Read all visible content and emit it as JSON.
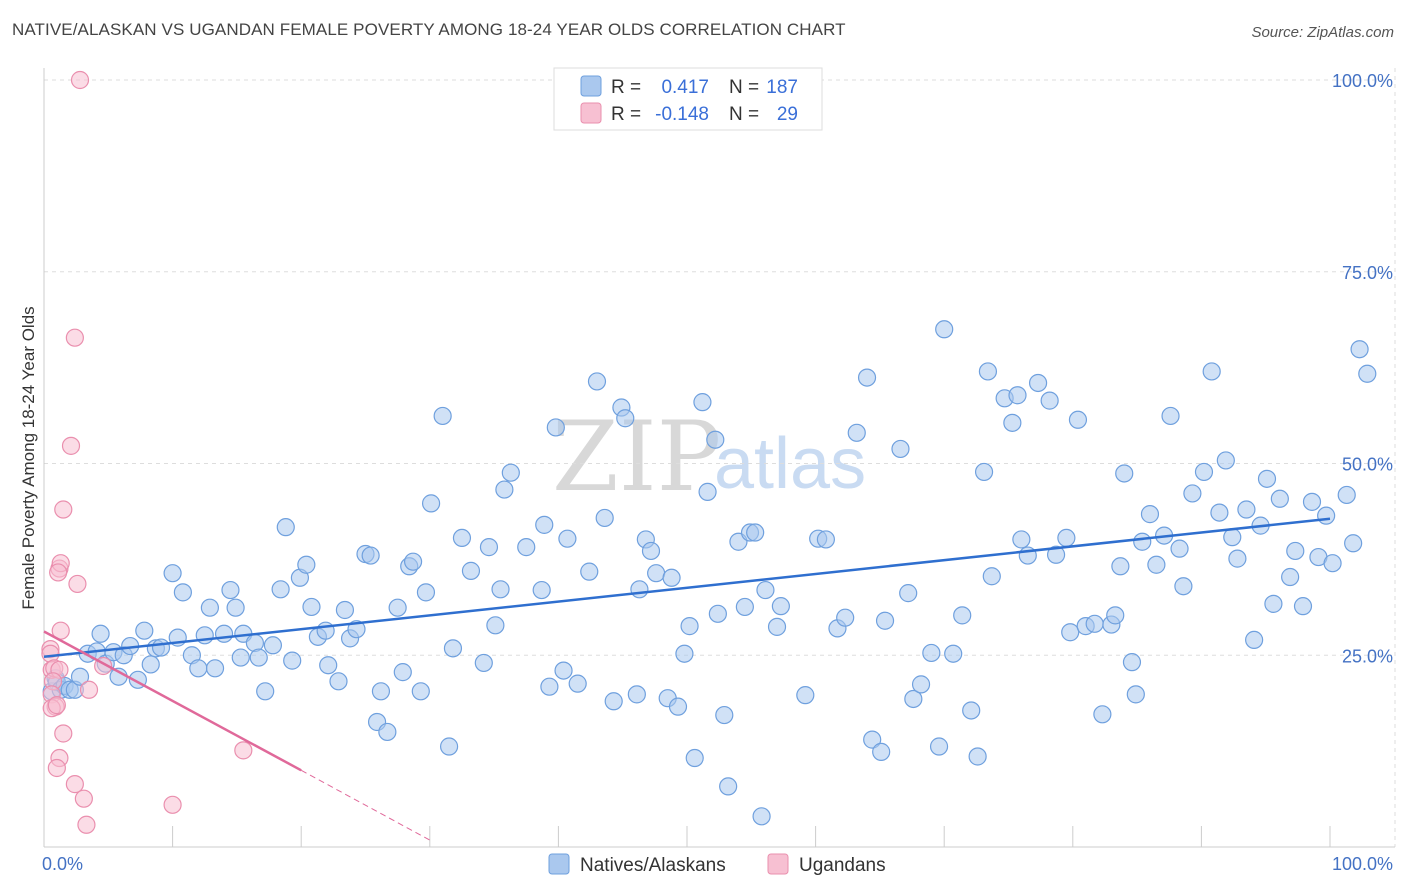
{
  "title": "NATIVE/ALASKAN VS UGANDAN FEMALE POVERTY AMONG 18-24 YEAR OLDS CORRELATION CHART",
  "source": "Source: ZipAtlas.com",
  "watermark": {
    "zip": "ZIP",
    "atlas": "atlas"
  },
  "colors": {
    "blue_fill": "#aac8ee",
    "blue_stroke": "#6fa0de",
    "blue_line": "#2f6fcf",
    "pink_fill": "#f7c0d2",
    "pink_stroke": "#ea8fae",
    "pink_line": "#e0699a",
    "grid": "#dddddd",
    "tick_text": "#4472c4"
  },
  "legend": {
    "rows": [
      {
        "r_label": "R =",
        "r_value": "0.417",
        "n_label": "N =",
        "n_value": "187"
      },
      {
        "r_label": "R =",
        "r_value": "-0.148",
        "n_label": "N =",
        "n_value": "29"
      }
    ]
  },
  "bottom_legend": [
    "Natives/Alaskans",
    "Ugandans"
  ],
  "chart_data": {
    "type": "scatter",
    "title": "NATIVE/ALASKAN VS UGANDAN FEMALE POVERTY AMONG 18-24 YEAR OLDS CORRELATION CHART",
    "xlabel": "",
    "ylabel": "Female Poverty Among 18-24 Year Olds",
    "xlim": [
      0,
      100
    ],
    "ylim": [
      0,
      100
    ],
    "x_tick_labels": [
      "0.0%",
      "100.0%"
    ],
    "y_tick_labels": [
      "25.0%",
      "50.0%",
      "75.0%",
      "100.0%"
    ],
    "y_ticks": [
      25,
      50,
      75,
      100
    ],
    "grid": true,
    "legend_position": "top-center",
    "series": [
      {
        "name": "Natives/Alaskans",
        "r": 0.417,
        "n": 187,
        "trend": {
          "x": [
            0,
            100
          ],
          "y": [
            24.8,
            42.8
          ]
        },
        "points": [
          [
            0.6,
            20.3
          ],
          [
            0.9,
            22.0
          ],
          [
            1.0,
            21.5
          ],
          [
            1.3,
            20.5
          ],
          [
            1.6,
            21.0
          ],
          [
            2.0,
            20.5
          ],
          [
            2.4,
            20.5
          ],
          [
            2.8,
            22.2
          ],
          [
            3.4,
            25.2
          ],
          [
            4.1,
            25.5
          ],
          [
            4.4,
            27.8
          ],
          [
            4.8,
            23.9
          ],
          [
            5.4,
            25.4
          ],
          [
            5.8,
            22.2
          ],
          [
            6.2,
            25.0
          ],
          [
            6.7,
            26.2
          ],
          [
            7.3,
            21.8
          ],
          [
            7.8,
            28.2
          ],
          [
            8.3,
            23.8
          ],
          [
            8.7,
            25.9
          ],
          [
            9.1,
            26.0
          ],
          [
            10.0,
            35.7
          ],
          [
            10.4,
            27.3
          ],
          [
            10.8,
            33.2
          ],
          [
            11.5,
            25.0
          ],
          [
            12.0,
            23.3
          ],
          [
            12.5,
            27.6
          ],
          [
            12.9,
            31.2
          ],
          [
            13.3,
            23.3
          ],
          [
            14.0,
            27.8
          ],
          [
            14.5,
            33.5
          ],
          [
            14.9,
            31.2
          ],
          [
            15.3,
            24.7
          ],
          [
            15.5,
            27.8
          ],
          [
            16.4,
            26.6
          ],
          [
            16.7,
            24.7
          ],
          [
            17.2,
            20.3
          ],
          [
            17.8,
            26.3
          ],
          [
            18.4,
            33.6
          ],
          [
            18.8,
            41.7
          ],
          [
            19.3,
            24.3
          ],
          [
            19.9,
            35.1
          ],
          [
            20.4,
            36.8
          ],
          [
            20.8,
            31.3
          ],
          [
            21.3,
            27.4
          ],
          [
            21.9,
            28.2
          ],
          [
            22.1,
            23.7
          ],
          [
            22.9,
            21.6
          ],
          [
            23.4,
            30.9
          ],
          [
            23.8,
            27.2
          ],
          [
            24.3,
            28.4
          ],
          [
            25.0,
            38.2
          ],
          [
            25.4,
            38.0
          ],
          [
            25.9,
            16.3
          ],
          [
            26.2,
            20.3
          ],
          [
            26.7,
            15.0
          ],
          [
            27.5,
            31.2
          ],
          [
            27.9,
            22.8
          ],
          [
            28.4,
            36.6
          ],
          [
            28.7,
            37.2
          ],
          [
            29.3,
            20.3
          ],
          [
            29.7,
            33.2
          ],
          [
            30.1,
            44.8
          ],
          [
            31.0,
            56.2
          ],
          [
            31.5,
            13.1
          ],
          [
            31.8,
            25.9
          ],
          [
            32.5,
            40.3
          ],
          [
            33.2,
            36.0
          ],
          [
            34.2,
            24.0
          ],
          [
            34.6,
            39.1
          ],
          [
            35.1,
            28.9
          ],
          [
            35.5,
            33.6
          ],
          [
            35.8,
            46.6
          ],
          [
            36.3,
            48.8
          ],
          [
            37.5,
            39.1
          ],
          [
            38.7,
            33.5
          ],
          [
            38.9,
            42.0
          ],
          [
            39.3,
            20.9
          ],
          [
            39.8,
            54.7
          ],
          [
            40.4,
            23.0
          ],
          [
            40.7,
            40.2
          ],
          [
            41.5,
            21.3
          ],
          [
            42.4,
            35.9
          ],
          [
            43.0,
            60.7
          ],
          [
            43.6,
            42.9
          ],
          [
            44.3,
            19.0
          ],
          [
            44.9,
            57.3
          ],
          [
            45.2,
            55.9
          ],
          [
            46.1,
            19.9
          ],
          [
            46.3,
            33.6
          ],
          [
            46.8,
            40.1
          ],
          [
            47.2,
            38.6
          ],
          [
            47.6,
            35.7
          ],
          [
            48.5,
            19.4
          ],
          [
            48.8,
            35.1
          ],
          [
            49.3,
            18.3
          ],
          [
            49.8,
            25.2
          ],
          [
            50.2,
            28.8
          ],
          [
            50.6,
            11.6
          ],
          [
            51.2,
            58.0
          ],
          [
            51.6,
            46.3
          ],
          [
            52.2,
            53.1
          ],
          [
            52.4,
            30.4
          ],
          [
            52.9,
            17.2
          ],
          [
            53.2,
            7.9
          ],
          [
            54.0,
            39.8
          ],
          [
            54.5,
            31.3
          ],
          [
            54.9,
            41.0
          ],
          [
            55.3,
            41.0
          ],
          [
            55.8,
            4.0
          ],
          [
            56.1,
            33.5
          ],
          [
            57.0,
            28.7
          ],
          [
            57.3,
            31.4
          ],
          [
            59.2,
            19.8
          ],
          [
            60.2,
            40.2
          ],
          [
            60.8,
            40.1
          ],
          [
            61.7,
            28.5
          ],
          [
            62.3,
            29.9
          ],
          [
            63.2,
            54.0
          ],
          [
            64.0,
            61.2
          ],
          [
            64.4,
            14.0
          ],
          [
            65.1,
            12.4
          ],
          [
            65.4,
            29.5
          ],
          [
            66.6,
            51.9
          ],
          [
            67.2,
            33.1
          ],
          [
            67.6,
            19.3
          ],
          [
            68.2,
            21.2
          ],
          [
            69.0,
            25.3
          ],
          [
            69.6,
            13.1
          ],
          [
            70.0,
            67.5
          ],
          [
            70.7,
            25.2
          ],
          [
            71.4,
            30.2
          ],
          [
            72.1,
            17.8
          ],
          [
            72.6,
            11.8
          ],
          [
            73.1,
            48.9
          ],
          [
            73.4,
            62.0
          ],
          [
            73.7,
            35.3
          ],
          [
            74.7,
            58.5
          ],
          [
            75.3,
            55.3
          ],
          [
            75.7,
            58.9
          ],
          [
            76.0,
            40.1
          ],
          [
            76.5,
            38.0
          ],
          [
            77.3,
            60.5
          ],
          [
            78.2,
            58.2
          ],
          [
            78.7,
            38.1
          ],
          [
            79.5,
            40.3
          ],
          [
            79.8,
            28.0
          ],
          [
            80.4,
            55.7
          ],
          [
            81.0,
            28.8
          ],
          [
            81.7,
            29.1
          ],
          [
            82.3,
            17.3
          ],
          [
            83.0,
            29.0
          ],
          [
            83.3,
            30.2
          ],
          [
            83.7,
            36.6
          ],
          [
            84.0,
            48.7
          ],
          [
            84.6,
            24.1
          ],
          [
            84.9,
            19.9
          ],
          [
            85.4,
            39.8
          ],
          [
            86.0,
            43.4
          ],
          [
            86.5,
            36.8
          ],
          [
            87.1,
            40.6
          ],
          [
            87.6,
            56.2
          ],
          [
            88.3,
            38.9
          ],
          [
            88.6,
            34.0
          ],
          [
            89.3,
            46.1
          ],
          [
            90.2,
            48.9
          ],
          [
            90.8,
            62.0
          ],
          [
            91.4,
            43.6
          ],
          [
            91.9,
            50.4
          ],
          [
            92.4,
            40.4
          ],
          [
            92.8,
            37.6
          ],
          [
            93.5,
            44.0
          ],
          [
            94.1,
            27.0
          ],
          [
            94.6,
            41.9
          ],
          [
            95.1,
            48.0
          ],
          [
            95.6,
            31.7
          ],
          [
            96.1,
            45.4
          ],
          [
            96.9,
            35.2
          ],
          [
            97.3,
            38.6
          ],
          [
            97.9,
            31.4
          ],
          [
            98.6,
            45.0
          ],
          [
            99.1,
            37.8
          ],
          [
            99.7,
            43.2
          ],
          [
            100.2,
            37.0
          ],
          [
            101.3,
            45.9
          ],
          [
            101.8,
            39.6
          ],
          [
            102.3,
            64.9
          ],
          [
            102.9,
            61.7
          ]
        ]
      },
      {
        "name": "Ugandans",
        "r": -0.148,
        "n": 29,
        "trend": {
          "x": [
            0,
            20
          ],
          "y": [
            28.1,
            10.0
          ],
          "dashed_extension": {
            "x": [
              20,
              30
            ],
            "y": [
              10.0,
              0.9
            ]
          }
        },
        "points": [
          [
            2.8,
            100.0
          ],
          [
            2.4,
            66.4
          ],
          [
            2.1,
            52.3
          ],
          [
            1.5,
            44.0
          ],
          [
            1.2,
            36.3
          ],
          [
            1.3,
            37.0
          ],
          [
            1.1,
            35.8
          ],
          [
            2.6,
            34.3
          ],
          [
            1.3,
            28.2
          ],
          [
            0.5,
            25.8
          ],
          [
            0.5,
            25.2
          ],
          [
            0.6,
            23.1
          ],
          [
            0.8,
            23.3
          ],
          [
            1.2,
            23.1
          ],
          [
            0.7,
            21.6
          ],
          [
            0.6,
            19.9
          ],
          [
            0.9,
            18.3
          ],
          [
            0.6,
            18.1
          ],
          [
            1.0,
            18.5
          ],
          [
            1.5,
            14.8
          ],
          [
            1.2,
            11.6
          ],
          [
            1.0,
            10.3
          ],
          [
            2.4,
            8.2
          ],
          [
            3.1,
            6.3
          ],
          [
            3.3,
            2.9
          ],
          [
            10.0,
            5.5
          ],
          [
            15.5,
            12.6
          ],
          [
            3.5,
            20.5
          ],
          [
            4.6,
            23.6
          ]
        ]
      }
    ]
  }
}
